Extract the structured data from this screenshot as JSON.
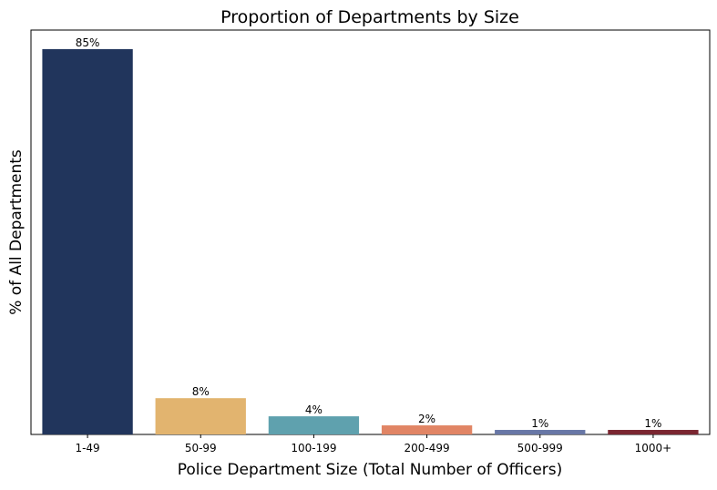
{
  "chart_data": {
    "type": "bar",
    "title": "Proportion of Departments by Size",
    "xlabel": "Police Department Size (Total Number of Officers)",
    "ylabel": "% of All Departments",
    "categories": [
      "1-49",
      "50-99",
      "100-199",
      "200-499",
      "500-999",
      "1000+"
    ],
    "values": [
      85,
      8,
      4,
      2,
      1,
      1
    ],
    "value_labels": [
      "85%",
      "8%",
      "4%",
      "2%",
      "1%",
      "1%"
    ],
    "colors": [
      "#21355c",
      "#e2b46f",
      "#5fa1ae",
      "#e18565",
      "#6877a6",
      "#7a2631"
    ],
    "ylim": [
      0,
      89.2
    ],
    "grid": false,
    "y_tick_labels_visible": false
  }
}
